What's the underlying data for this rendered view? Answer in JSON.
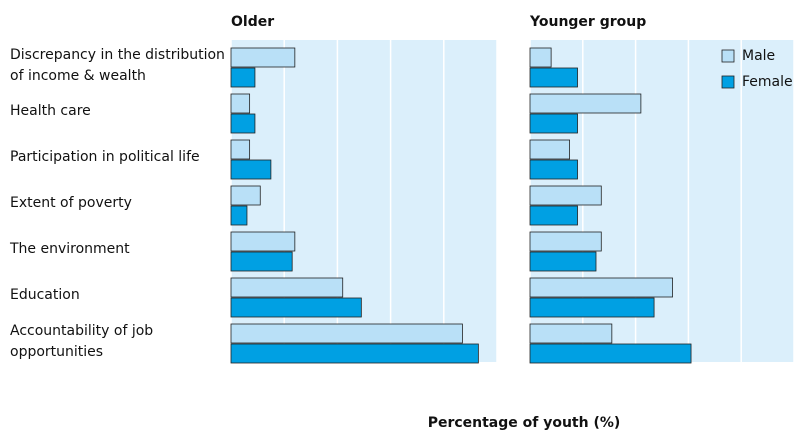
{
  "chart_data": {
    "type": "bar",
    "orientation": "horizontal",
    "categories": [
      "Discrepancy in the distribution of income & wealth",
      "Health care",
      "Participation in political life",
      "Extent of poverty",
      "The environment",
      "Education",
      "Accountability of job opportunities"
    ],
    "series": [
      {
        "name": "Male",
        "color": "#b9e0f7"
      },
      {
        "name": "Female",
        "color": "#00a0e3"
      }
    ],
    "panels": [
      {
        "title": "Older",
        "values": [
          [
            12,
            3.5,
            3.5,
            5.5,
            12,
            21,
            43.5
          ],
          [
            4.5,
            4.5,
            7.5,
            3,
            11.5,
            24.5,
            46.5
          ]
        ]
      },
      {
        "title": "Younger group",
        "values": [
          [
            4,
            21,
            7.5,
            13.5,
            13.5,
            27,
            15.5
          ],
          [
            9,
            9,
            9,
            9,
            12.5,
            23.5,
            30.5
          ]
        ]
      }
    ],
    "xlabel": "Percentage of youth (%)",
    "xlim": [
      0,
      50
    ],
    "xticks": [
      0,
      10,
      20,
      30,
      40,
      50
    ],
    "grid": true,
    "legend": "upper right"
  }
}
